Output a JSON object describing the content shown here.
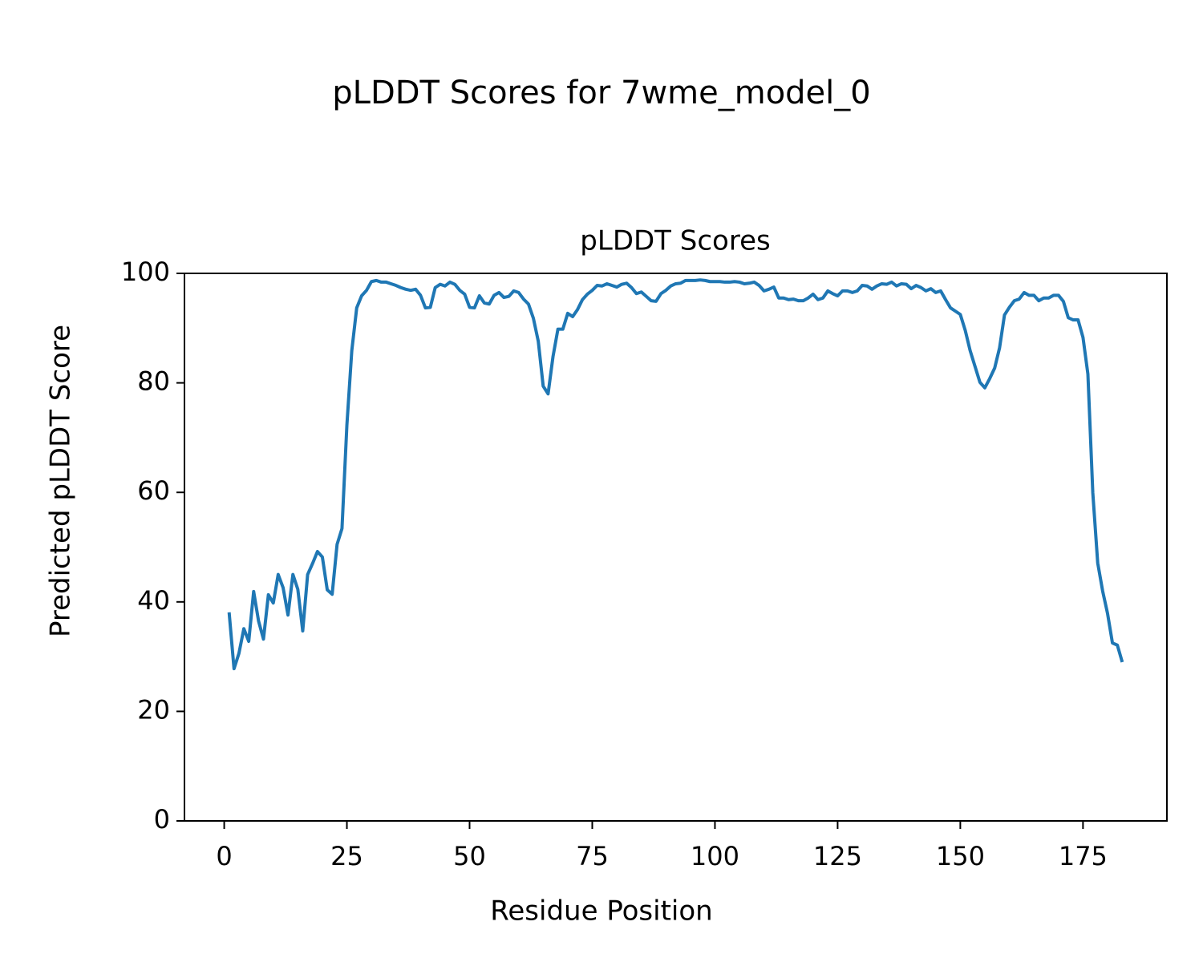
{
  "chart_data": {
    "type": "line",
    "title": "pLDDT Scores for 7wme_model_0",
    "subtitle": "pLDDT Scores",
    "xlabel": "Residue Position",
    "ylabel": "Predicted pLDDT Score",
    "x": [
      1,
      2,
      3,
      4,
      5,
      6,
      7,
      8,
      9,
      10,
      11,
      12,
      13,
      14,
      15,
      16,
      17,
      18,
      19,
      20,
      21,
      22,
      23,
      24,
      25,
      26,
      27,
      28,
      29,
      30,
      31,
      32,
      33,
      34,
      35,
      36,
      37,
      38,
      39,
      40,
      41,
      42,
      43,
      44,
      45,
      46,
      47,
      48,
      49,
      50,
      51,
      52,
      53,
      54,
      55,
      56,
      57,
      58,
      59,
      60,
      61,
      62,
      63,
      64,
      65,
      66,
      67,
      68,
      69,
      70,
      71,
      72,
      73,
      74,
      75,
      76,
      77,
      78,
      79,
      80,
      81,
      82,
      83,
      84,
      85,
      86,
      87,
      88,
      89,
      90,
      91,
      92,
      93,
      94,
      95,
      96,
      97,
      98,
      99,
      100,
      101,
      102,
      103,
      104,
      105,
      106,
      107,
      108,
      109,
      110,
      111,
      112,
      113,
      114,
      115,
      116,
      117,
      118,
      119,
      120,
      121,
      122,
      123,
      124,
      125,
      126,
      127,
      128,
      129,
      130,
      131,
      132,
      133,
      134,
      135,
      136,
      137,
      138,
      139,
      140,
      141,
      142,
      143,
      144,
      145,
      146,
      147,
      148,
      149,
      150,
      151,
      152,
      153,
      154,
      155,
      156,
      157,
      158,
      159,
      160,
      161,
      162,
      163,
      164,
      165,
      166,
      167,
      168,
      169,
      170,
      171,
      172,
      173,
      174,
      175,
      176,
      177,
      178,
      179,
      180,
      181,
      182,
      183
    ],
    "series": [
      {
        "name": "pLDDT",
        "color": "#1f77b4",
        "values": [
          38.1,
          27.8,
          30.6,
          35.1,
          32.8,
          41.9,
          36.5,
          33.2,
          41.3,
          39.8,
          45,
          42.6,
          37.6,
          45,
          42.3,
          34.7,
          45,
          47,
          49.2,
          48.2,
          42.2,
          41.4,
          50.5,
          53.4,
          72.3,
          85.9,
          93.7,
          95.9,
          96.9,
          98.5,
          98.7,
          98.4,
          98.4,
          98.1,
          97.8,
          97.4,
          97.1,
          96.9,
          97.1,
          96,
          93.7,
          93.8,
          97.4,
          98,
          97.7,
          98.4,
          98,
          96.9,
          96.2,
          93.8,
          93.7,
          95.9,
          94.6,
          94.4,
          96,
          96.5,
          95.6,
          95.8,
          96.8,
          96.5,
          95.3,
          94.4,
          91.8,
          87.6,
          79.4,
          78,
          84.8,
          89.8,
          89.8,
          92.7,
          92.1,
          93.4,
          95.2,
          96.2,
          96.9,
          97.8,
          97.7,
          98.1,
          97.8,
          97.5,
          98,
          98.2,
          97.4,
          96.3,
          96.6,
          95.8,
          95,
          94.9,
          96.3,
          96.9,
          97.7,
          98.1,
          98.2,
          98.7,
          98.7,
          98.7,
          98.8,
          98.7,
          98.5,
          98.5,
          98.5,
          98.4,
          98.4,
          98.5,
          98.4,
          98.1,
          98.2,
          98.4,
          97.8,
          96.8,
          97.1,
          97.5,
          95.5,
          95.5,
          95.2,
          95.3,
          95,
          95,
          95.5,
          96.2,
          95.2,
          95.5,
          96.8,
          96.3,
          95.9,
          96.8,
          96.8,
          96.5,
          96.8,
          97.8,
          97.7,
          97.1,
          97.7,
          98.1,
          98,
          98.4,
          97.7,
          98.1,
          98,
          97.2,
          97.8,
          97.4,
          96.8,
          97.2,
          96.5,
          96.8,
          95.2,
          93.7,
          93.1,
          92.5,
          89.6,
          85.9,
          83,
          80.1,
          79.1,
          80.8,
          82.7,
          86.4,
          92.4,
          93.8,
          95,
          95.3,
          96.5,
          96,
          96,
          95,
          95.5,
          95.5,
          96,
          96,
          94.9,
          91.9,
          91.5,
          91.5,
          88.3,
          81.6,
          59.9,
          47.1,
          42,
          37.9,
          32.5,
          32.1,
          29
        ]
      }
    ],
    "xlim": [
      -8.1,
      192.1
    ],
    "xticks": [
      0,
      25,
      50,
      75,
      100,
      125,
      150,
      175
    ],
    "ylim": [
      0,
      100
    ],
    "yticks": [
      0,
      20,
      40,
      60,
      80,
      100
    ]
  }
}
